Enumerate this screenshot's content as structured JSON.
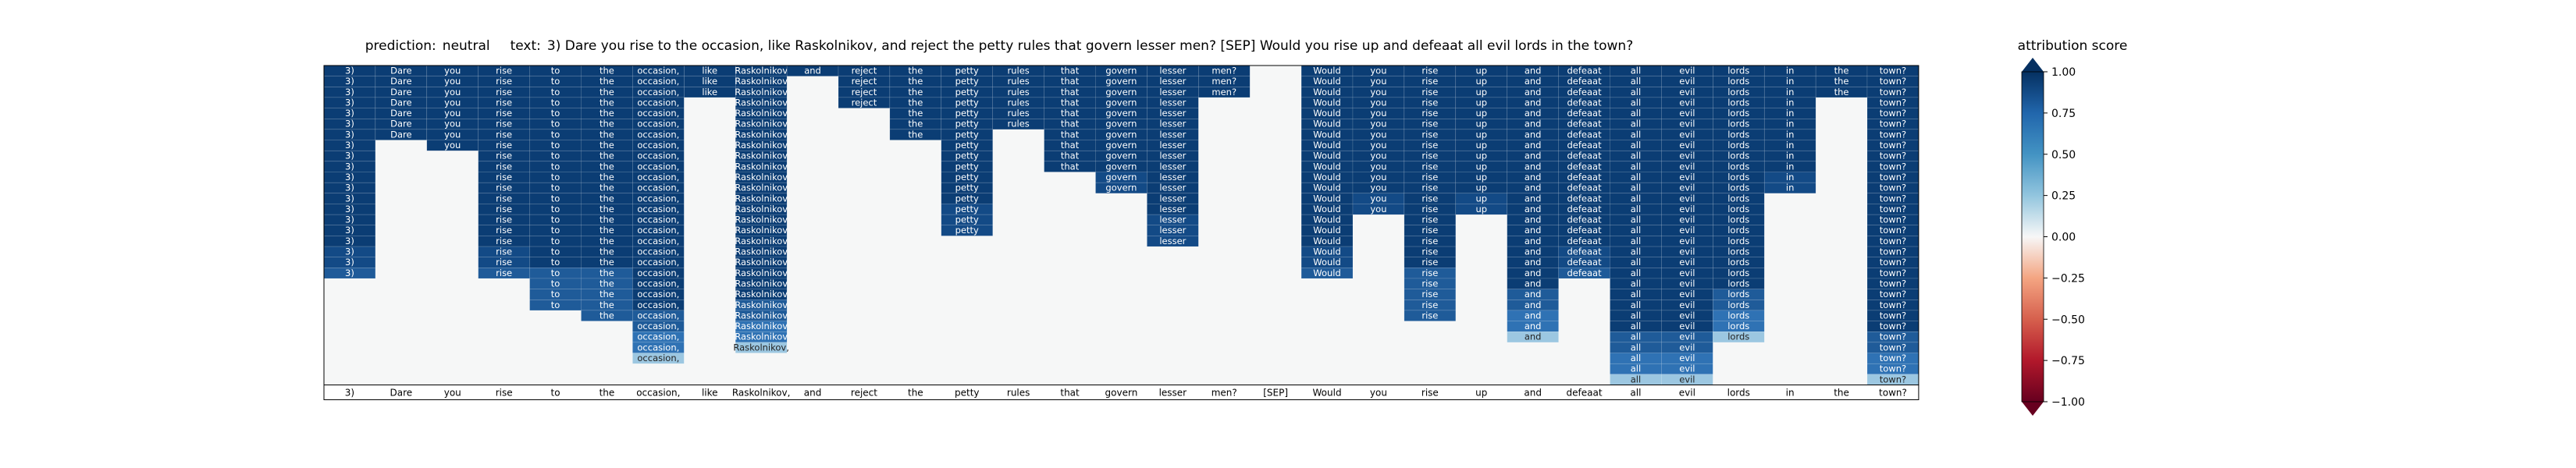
{
  "chart_data": {
    "type": "heatmap",
    "prediction_label": "prediction:",
    "prediction": "neutral",
    "text_label": "text:",
    "text": "3) Dare you rise to the occasion, like Raskolnikov, and reject the petty rules that govern lesser men? [SEP] Would you rise up and defeaat all evil lords in the town?",
    "tokens": [
      "3)",
      "Dare",
      "you",
      "rise",
      "to",
      "the",
      "occasion,",
      "like",
      "Raskolnikov,",
      "and",
      "reject",
      "the",
      "petty",
      "rules",
      "that",
      "govern",
      "lesser",
      "men?",
      "[SEP]",
      "Would",
      "you",
      "rise",
      "up",
      "and",
      "defeaat",
      "all",
      "evil",
      "lords",
      "in",
      "the",
      "town?"
    ],
    "rows": 30,
    "cell_labels": [
      "3)",
      "Dare",
      "you",
      "rise",
      "to",
      "the",
      "occasion,",
      "like",
      "Raskolnikov",
      "and",
      "reject",
      "the",
      "petty",
      "rules",
      "that",
      "govern",
      "lesser",
      "men?",
      "[SEP]",
      "Would",
      "you",
      "rise",
      "up",
      "and",
      "defeaat",
      "all",
      "evil",
      "lords",
      "in",
      "the",
      "town?"
    ],
    "row_visible_until": [
      20,
      7,
      8,
      20,
      23,
      24,
      28,
      3,
      27,
      1,
      4,
      7,
      16,
      6,
      10,
      12,
      17,
      3,
      0,
      20,
      14,
      24,
      14,
      26,
      20,
      30,
      30,
      26,
      12,
      3,
      30
    ],
    "wide_row_label": "Raskolnikov,",
    "colorbar": {
      "label": "attribution score",
      "ticks": [
        "1.00",
        "0.75",
        "0.50",
        "0.25",
        "0.00",
        "−0.25",
        "−0.50",
        "−0.75",
        "−1.00"
      ],
      "tick_values": [
        1.0,
        0.75,
        0.5,
        0.25,
        0.0,
        -0.25,
        -0.5,
        -0.75,
        -1.0
      ],
      "range": [
        -1,
        1
      ],
      "colormap": "RdBu",
      "extend": "both"
    },
    "colors": {
      "strong_positive": "#0b3d74",
      "mid_positive": "#2f72b4",
      "light_positive": "#9cc7e1",
      "neutral": "#f5f5f5",
      "background": "#f6f7f7"
    }
  }
}
